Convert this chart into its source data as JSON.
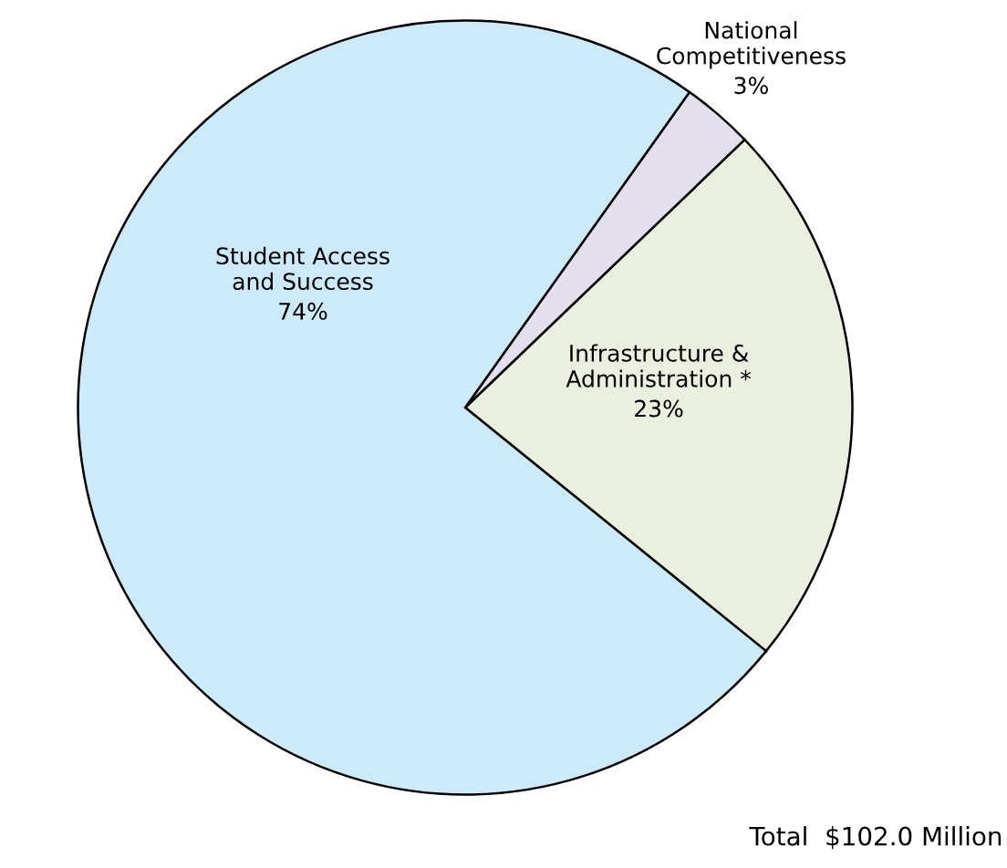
{
  "chart_data": {
    "type": "pie",
    "categories": [
      "Infrastructure &\nAdministration *",
      "National\nCompetitiveness",
      "Student Access\nand Success"
    ],
    "values": [
      23,
      3,
      74
    ],
    "value_labels": [
      "23%",
      "3%",
      "74%"
    ],
    "colors": [
      "#ebefdf",
      "#e4dfec",
      "#cdeafb"
    ],
    "annotations": [
      "Total  $102.0 Million"
    ]
  }
}
